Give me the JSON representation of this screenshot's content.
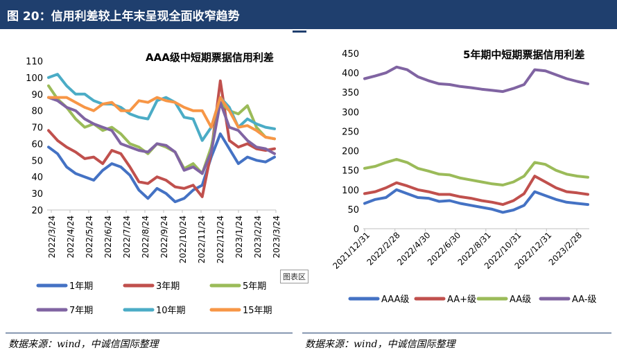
{
  "header": {
    "title": "图 20：信用利差较上年末呈现全面收窄趋势"
  },
  "watermark": "图表区",
  "footer": {
    "left_source": "数据来源：wind，中诚信国际整理",
    "right_source": "数据来源：wind，中诚信国际整理"
  },
  "chart_data": [
    {
      "type": "line",
      "title": "AAA级中短期票据信用利差",
      "xlabel": "",
      "ylabel": "",
      "ylim": [
        20,
        110
      ],
      "yticks": [
        20,
        30,
        40,
        50,
        60,
        70,
        80,
        90,
        100,
        110
      ],
      "xtick_labels": [
        "2022/3/24",
        "2022/4/24",
        "2022/5/24",
        "2022/6/24",
        "2022/7/24",
        "2022/8/24",
        "2022/9/24",
        "2022/10/24",
        "2022/11/24",
        "2022/12/24",
        "2023/1/24",
        "2023/2/24",
        "2023/3/24"
      ],
      "grid": false,
      "legend": "bottom",
      "series": [
        {
          "name": "1年期",
          "color": "#4472c4",
          "values": [
            58,
            54,
            46,
            42,
            40,
            38,
            44,
            48,
            46,
            41,
            32,
            27,
            33,
            30,
            25,
            27,
            32,
            35,
            52,
            66,
            57,
            48,
            52,
            50,
            49,
            52
          ]
        },
        {
          "name": "3年期",
          "color": "#c0504d",
          "values": [
            68,
            62,
            58,
            55,
            51,
            52,
            48,
            56,
            54,
            46,
            37,
            36,
            40,
            38,
            34,
            33,
            35,
            28,
            55,
            98,
            62,
            58,
            60,
            57,
            56,
            57
          ]
        },
        {
          "name": "5年期",
          "color": "#9bbb59",
          "values": [
            95,
            87,
            82,
            75,
            70,
            72,
            68,
            70,
            66,
            60,
            58,
            54,
            60,
            58,
            55,
            45,
            48,
            42,
            58,
            85,
            80,
            78,
            83,
            70,
            64,
            63
          ]
        },
        {
          "name": "7年期",
          "color": "#8064a2",
          "values": [
            88,
            86,
            82,
            80,
            75,
            72,
            70,
            68,
            60,
            58,
            56,
            55,
            60,
            59,
            55,
            44,
            46,
            42,
            55,
            85,
            70,
            68,
            62,
            58,
            57,
            54
          ]
        },
        {
          "name": "10年期",
          "color": "#4bacc6",
          "values": [
            100,
            102,
            95,
            90,
            90,
            86,
            84,
            84,
            82,
            78,
            76,
            75,
            86,
            88,
            85,
            76,
            75,
            62,
            70,
            88,
            82,
            70,
            75,
            72,
            70,
            69
          ]
        },
        {
          "name": "15年期",
          "color": "#f79646",
          "values": [
            88,
            88,
            88,
            85,
            82,
            80,
            84,
            85,
            80,
            80,
            86,
            85,
            88,
            86,
            85,
            82,
            80,
            80,
            70,
            88,
            80,
            70,
            71,
            68,
            64,
            63
          ]
        }
      ]
    },
    {
      "type": "line",
      "title": "5年期中短期票据信用利差",
      "xlabel": "",
      "ylabel": "",
      "ylim": [
        0,
        450
      ],
      "yticks": [
        0,
        50,
        100,
        150,
        200,
        250,
        300,
        350,
        400,
        450
      ],
      "xtick_labels": [
        "2021/12/31",
        "2022/2/28",
        "2022/4/30",
        "2022/6/30",
        "2022/8/31",
        "2022/10/31",
        "2022/12/31",
        "2023/2/28"
      ],
      "grid": false,
      "legend": "bottom",
      "series": [
        {
          "name": "AAA级",
          "color": "#4472c4",
          "values": [
            65,
            75,
            80,
            100,
            90,
            80,
            78,
            70,
            72,
            65,
            60,
            55,
            50,
            42,
            48,
            60,
            95,
            85,
            75,
            68,
            65,
            62
          ]
        },
        {
          "name": "AA+级",
          "color": "#c0504d",
          "values": [
            90,
            95,
            105,
            118,
            110,
            100,
            95,
            88,
            88,
            82,
            78,
            72,
            68,
            62,
            72,
            90,
            135,
            120,
            105,
            95,
            92,
            88
          ]
        },
        {
          "name": "AA级",
          "color": "#9bbb59",
          "values": [
            155,
            160,
            170,
            178,
            170,
            155,
            148,
            140,
            138,
            130,
            125,
            120,
            115,
            112,
            120,
            135,
            170,
            165,
            150,
            140,
            135,
            132
          ]
        },
        {
          "name": "AA-级",
          "color": "#8064a2",
          "values": [
            385,
            392,
            400,
            415,
            408,
            390,
            380,
            372,
            370,
            365,
            362,
            358,
            355,
            352,
            360,
            370,
            408,
            405,
            395,
            385,
            378,
            372
          ]
        }
      ]
    }
  ]
}
